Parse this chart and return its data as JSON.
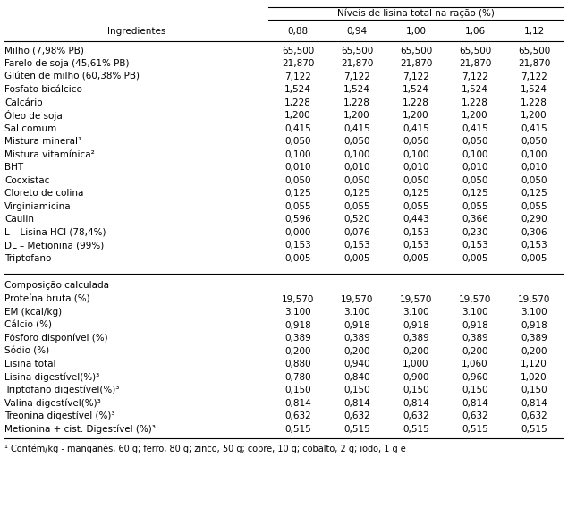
{
  "title": "Níveis de lisina total na ração (%)",
  "col_header_left": "Ingredientes",
  "col_headers": [
    "0,88",
    "0,94",
    "1,00",
    "1,06",
    "1,12"
  ],
  "section1_rows": [
    [
      "Milho (7,98% PB)",
      "65,500",
      "65,500",
      "65,500",
      "65,500",
      "65,500"
    ],
    [
      "Farelo de soja (45,61% PB)",
      "21,870",
      "21,870",
      "21,870",
      "21,870",
      "21,870"
    ],
    [
      "Glúten de milho (60,38% PB)",
      "7,122",
      "7,122",
      "7,122",
      "7,122",
      "7,122"
    ],
    [
      "Fosfato bicálcico",
      "1,524",
      "1,524",
      "1,524",
      "1,524",
      "1,524"
    ],
    [
      "Calcário",
      "1,228",
      "1,228",
      "1,228",
      "1,228",
      "1,228"
    ],
    [
      "Óleo de soja",
      "1,200",
      "1,200",
      "1,200",
      "1,200",
      "1,200"
    ],
    [
      "Sal comum",
      "0,415",
      "0,415",
      "0,415",
      "0,415",
      "0,415"
    ],
    [
      "Mistura mineral¹",
      "0,050",
      "0,050",
      "0,050",
      "0,050",
      "0,050"
    ],
    [
      "Mistura vitamínica²",
      "0,100",
      "0,100",
      "0,100",
      "0,100",
      "0,100"
    ],
    [
      "BHT",
      "0,010",
      "0,010",
      "0,010",
      "0,010",
      "0,010"
    ],
    [
      "Cocxistac",
      "0,050",
      "0,050",
      "0,050",
      "0,050",
      "0,050"
    ],
    [
      "Cloreto de colina",
      "0,125",
      "0,125",
      "0,125",
      "0,125",
      "0,125"
    ],
    [
      "Virginiamicina",
      "0,055",
      "0,055",
      "0,055",
      "0,055",
      "0,055"
    ],
    [
      "Caulin",
      "0,596",
      "0,520",
      "0,443",
      "0,366",
      "0,290"
    ],
    [
      "L – Lisina HCl (78,4%)",
      "0,000",
      "0,076",
      "0,153",
      "0,230",
      "0,306"
    ],
    [
      "DL – Metionina (99%)",
      "0,153",
      "0,153",
      "0,153",
      "0,153",
      "0,153"
    ],
    [
      "Triptofano",
      "0,005",
      "0,005",
      "0,005",
      "0,005",
      "0,005"
    ]
  ],
  "section2_label": "Composição calculada",
  "section2_rows": [
    [
      "Proteína bruta (%)",
      "19,570",
      "19,570",
      "19,570",
      "19,570",
      "19,570"
    ],
    [
      "EM (kcal/kg)",
      "3.100",
      "3.100",
      "3.100",
      "3.100",
      "3.100"
    ],
    [
      "Cálcio (%)",
      "0,918",
      "0,918",
      "0,918",
      "0,918",
      "0,918"
    ],
    [
      "Fósforo disponível (%)",
      "0,389",
      "0,389",
      "0,389",
      "0,389",
      "0,389"
    ],
    [
      "Sódio (%)",
      "0,200",
      "0,200",
      "0,200",
      "0,200",
      "0,200"
    ],
    [
      "Lisina total",
      "0,880",
      "0,940",
      "1,000",
      "1,060",
      "1,120"
    ],
    [
      "Lisina digestível(%)³",
      "0,780",
      "0,840",
      "0,900",
      "0,960",
      "1,020"
    ],
    [
      "Triptofano digestível(%)³",
      "0,150",
      "0,150",
      "0,150",
      "0,150",
      "0,150"
    ],
    [
      "Valina digestível(%)³",
      "0,814",
      "0,814",
      "0,814",
      "0,814",
      "0,814"
    ],
    [
      "Treonina digestível (%)³",
      "0,632",
      "0,632",
      "0,632",
      "0,632",
      "0,632"
    ],
    [
      "Metionina + cist. Digestível (%)³",
      "0,515",
      "0,515",
      "0,515",
      "0,515",
      "0,515"
    ]
  ],
  "footnote": "¹ Contém/kg - manganês, 60 g; ferro, 80 g; zinco, 50 g; cobre, 10 g; cobalto, 2 g; iodo, 1 g e",
  "bg_color": "#ffffff",
  "text_color": "#000000",
  "font_size": 7.5
}
